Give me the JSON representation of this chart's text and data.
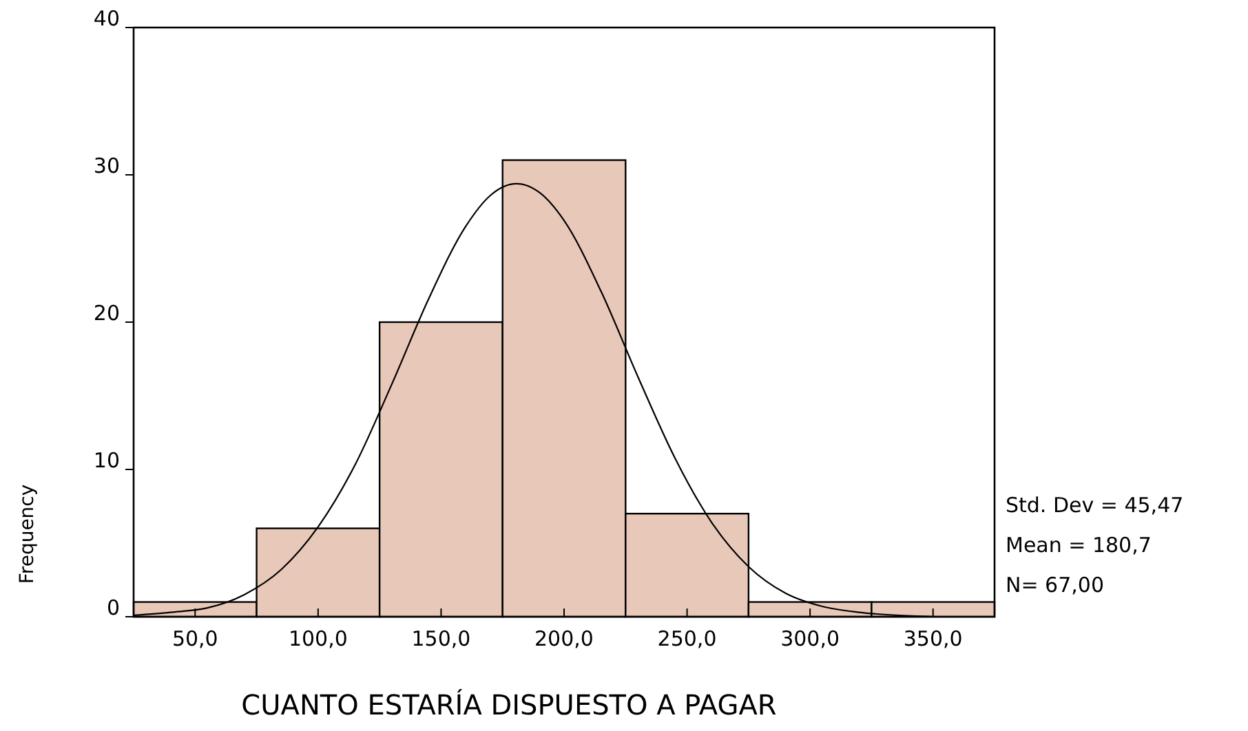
{
  "chart_data": {
    "type": "histogram",
    "xlabel": "CUANTO ESTARÍA DISPUESTO A PAGAR",
    "ylabel": "Frequency",
    "bins": [
      25,
      75,
      125,
      175,
      225,
      275,
      325,
      375
    ],
    "values": [
      1,
      6,
      20,
      31,
      7,
      1,
      1
    ],
    "color": "#e8c8b8",
    "series": [
      {
        "type": "line",
        "color": "#000000",
        "x": [
          25,
          40,
          55,
          70,
          85,
          100,
          115,
          130,
          145,
          160,
          170,
          180.7,
          190,
          200,
          215,
          230,
          245,
          260,
          275,
          290,
          305,
          320,
          335,
          350
        ],
        "values": [
          0.1,
          0.3,
          0.6,
          1.5,
          3.2,
          6.1,
          10.3,
          15.8,
          21.6,
          26.5,
          28.6,
          29.4,
          28.8,
          26.9,
          22.1,
          16.3,
          10.8,
          6.4,
          3.4,
          1.6,
          0.7,
          0.3,
          0.1,
          0
        ]
      }
    ],
    "xlim": [
      25,
      375
    ],
    "ylim": [
      0,
      40
    ],
    "xticks": [
      {
        "value": 50,
        "label": "50,0"
      },
      {
        "value": 100,
        "label": "100,0"
      },
      {
        "value": 150,
        "label": "150,0"
      },
      {
        "value": 200,
        "label": "200,0"
      },
      {
        "value": 250,
        "label": "250,0"
      },
      {
        "value": 300,
        "label": "300,0"
      },
      {
        "value": 350,
        "label": "350,0"
      }
    ],
    "yticks": [
      0,
      10,
      20,
      30,
      40
    ],
    "annotations": [
      "Std. Dev = 45,47",
      "Mean = 180,7",
      "N= 67,00"
    ],
    "grid": false,
    "marker": "none",
    "line_style": "solid"
  }
}
